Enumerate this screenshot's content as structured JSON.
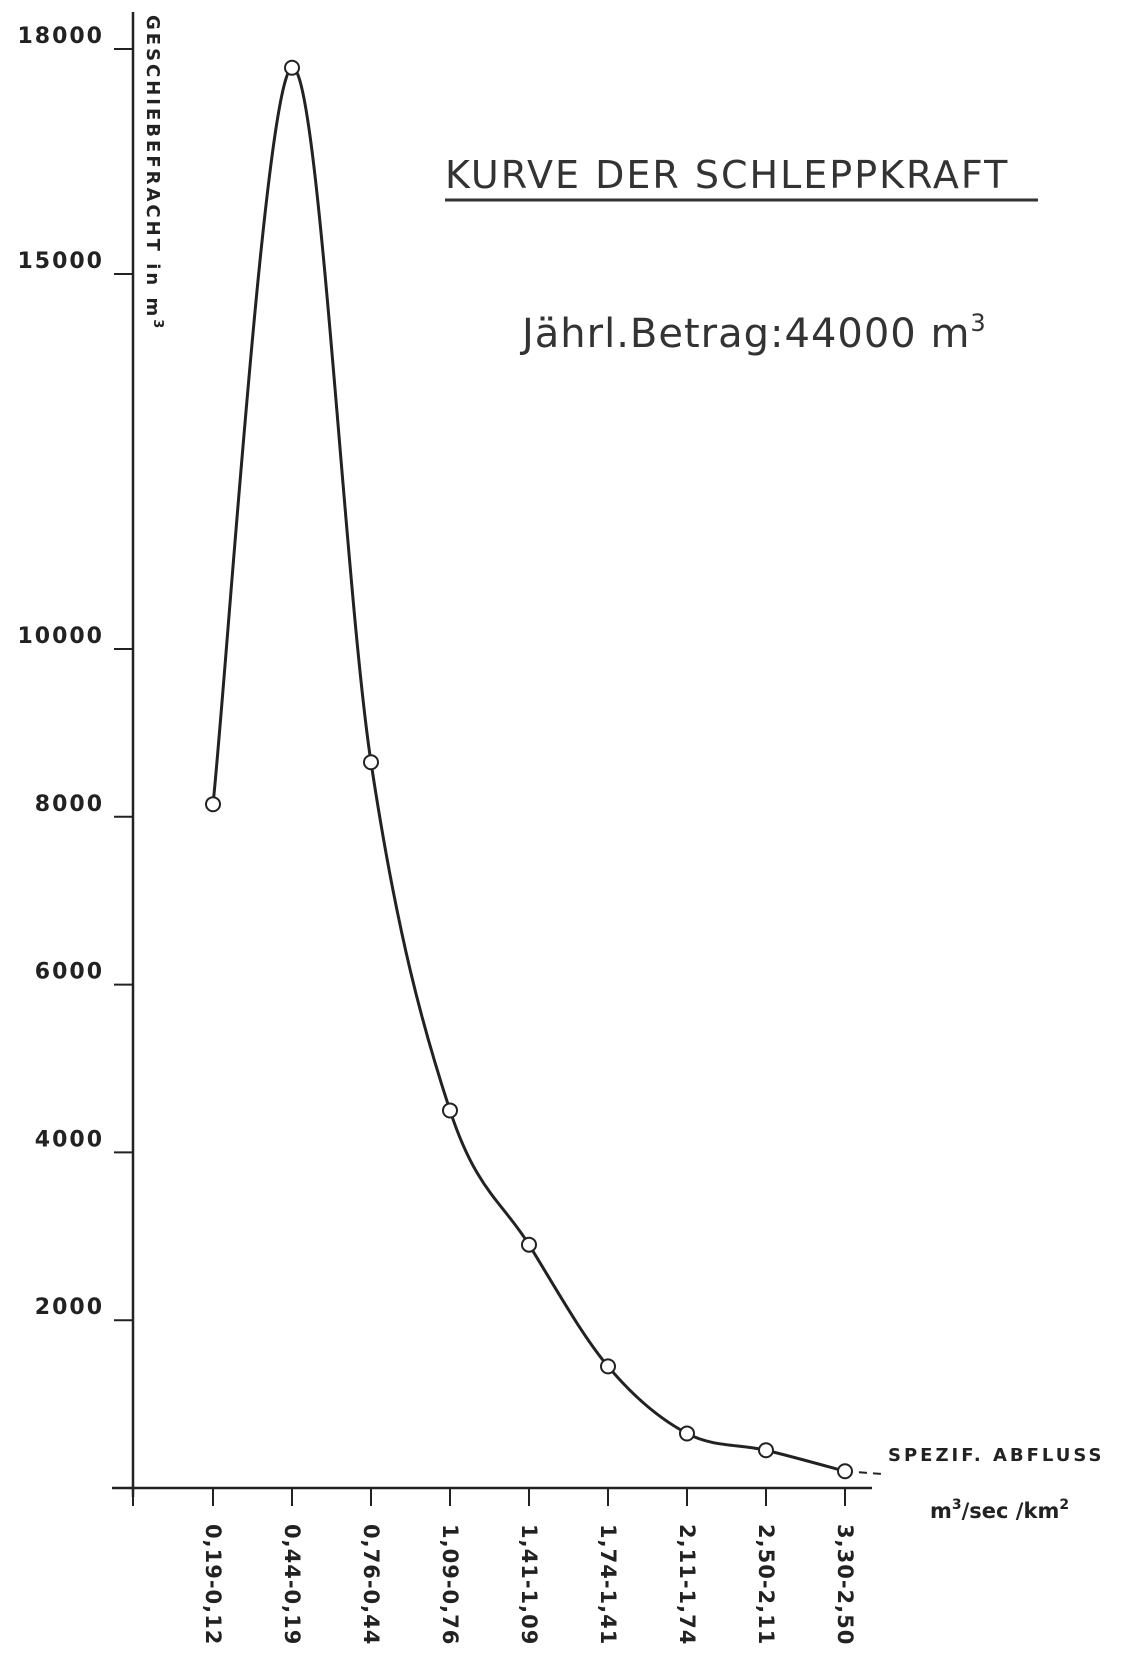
{
  "chart_data": {
    "type": "line",
    "title": "KURVE DER SCHLEPPKRAFT",
    "annotation": {
      "prefix": "Jährl.Betrag:44000 m",
      "superscript": "3"
    },
    "ylabel": {
      "text": "GESCHIEBEFRACHT in m",
      "superscript": "3"
    },
    "xlabel": "SPEZIF. ABFLUSS",
    "xunit": {
      "part1": "m",
      "sup1": "3",
      "part2": "/sec /km",
      "sup2": "2"
    },
    "yticks": [
      {
        "value": 2000,
        "label": "2000"
      },
      {
        "value": 4000,
        "label": "4000"
      },
      {
        "value": 6000,
        "label": "6000"
      },
      {
        "value": 8000,
        "label": "8000"
      },
      {
        "value": 10000,
        "label": "10000"
      },
      {
        "value": 15000,
        "label": "15000"
      },
      {
        "value": 18000,
        "label": "18000"
      }
    ],
    "categories": [
      "0,19-0,12",
      "0,44-0,19",
      "0,76-0,44",
      "1,09-0,76",
      "1,41-1,09",
      "1,74-1,41",
      "2,11-1,74",
      "2,50-2,11",
      "3,30-2,50"
    ],
    "values": [
      8150,
      17750,
      8650,
      4500,
      2900,
      1450,
      650,
      450,
      200
    ],
    "ylim": [
      0,
      18000
    ],
    "grid": false,
    "curve": "smooth line through points, dashed extension after last point",
    "colors": {
      "ink": "#222222",
      "paper": "#ffffff"
    }
  }
}
